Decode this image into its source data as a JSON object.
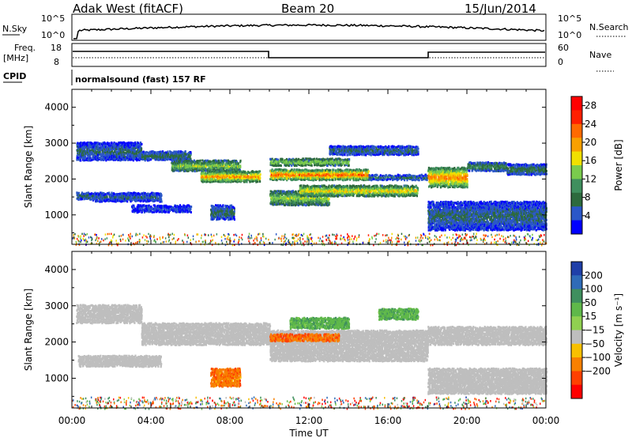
{
  "header": {
    "radar": "Adak West (fitACF)",
    "beam": "Beam 20",
    "date": "15/Jun/2014"
  },
  "top_panels": {
    "nsky_label": "N.Sky",
    "nsearch_label": "N.Search",
    "noise_ticks": [
      "10^5",
      "10^0"
    ],
    "freq_label_1": "Freq.",
    "freq_label_2": "[MHz]",
    "freq_ticks": [
      "18",
      "8"
    ],
    "nave_label": "Nave",
    "nave_ticks": [
      "60",
      "0"
    ],
    "cpid_label": "CPID",
    "cpid_text": "normalsound (fast) 157 RF"
  },
  "chart_data": [
    {
      "type": "heatmap",
      "title": "",
      "xlabel": "Time UT",
      "ylabel": "Slant Range [km]",
      "x_ticks": [
        "00:00",
        "04:00",
        "08:00",
        "12:00",
        "16:00",
        "20:00",
        "00:00"
      ],
      "xlim_hours": [
        0,
        24
      ],
      "y_ticks": [
        1000,
        2000,
        3000,
        4000
      ],
      "ylim": [
        180,
        4500
      ],
      "colorbar": {
        "label": "Power [dB]",
        "ticks": [
          4,
          8,
          12,
          16,
          20,
          24,
          28
        ],
        "range": [
          0,
          30
        ],
        "colors": [
          "#0000ff",
          "#2b57c8",
          "#2d6a3d",
          "#3f8f5e",
          "#7acb4d",
          "#f0e000",
          "#f8a000",
          "#ff6a00",
          "#ff2000",
          "#ff0000"
        ]
      },
      "bands": [
        {
          "t0": 0.2,
          "t1": 3.5,
          "r0": 2550,
          "r1": 3050,
          "power": 6
        },
        {
          "t0": 1.0,
          "t1": 4.5,
          "r0": 1400,
          "r1": 1650,
          "power": 6
        },
        {
          "t0": 0.2,
          "t1": 1.0,
          "r0": 1450,
          "r1": 1650,
          "power": 8
        },
        {
          "t0": 3.0,
          "t1": 6.0,
          "r0": 1100,
          "r1": 1300,
          "power": 5
        },
        {
          "t0": 3.5,
          "t1": 6.0,
          "r0": 2550,
          "r1": 2800,
          "power": 8
        },
        {
          "t0": 5.0,
          "t1": 8.5,
          "r0": 2250,
          "r1": 2550,
          "power": 14
        },
        {
          "t0": 6.5,
          "t1": 9.5,
          "r0": 1950,
          "r1": 2250,
          "power": 20
        },
        {
          "t0": 7.0,
          "t1": 8.2,
          "r0": 900,
          "r1": 1300,
          "power": 7
        },
        {
          "t0": 10.0,
          "t1": 15.0,
          "r0": 2000,
          "r1": 2300,
          "power": 22
        },
        {
          "t0": 10.0,
          "t1": 14.0,
          "r0": 2400,
          "r1": 2600,
          "power": 16
        },
        {
          "t0": 10.0,
          "t1": 13.0,
          "r0": 1300,
          "r1": 1700,
          "power": 14
        },
        {
          "t0": 11.5,
          "t1": 17.5,
          "r0": 1550,
          "r1": 1850,
          "power": 17
        },
        {
          "t0": 13.0,
          "t1": 17.5,
          "r0": 2700,
          "r1": 2950,
          "power": 7
        },
        {
          "t0": 15.0,
          "t1": 18.0,
          "r0": 2000,
          "r1": 2150,
          "power": 9
        },
        {
          "t0": 18.0,
          "t1": 20.0,
          "r0": 1800,
          "r1": 2350,
          "power": 20
        },
        {
          "t0": 20.0,
          "t1": 22.0,
          "r0": 2250,
          "r1": 2500,
          "power": 10
        },
        {
          "t0": 22.0,
          "t1": 24.0,
          "r0": 2150,
          "r1": 2450,
          "power": 8
        },
        {
          "t0": 18.0,
          "t1": 24.0,
          "r0": 600,
          "r1": 1400,
          "power": 6
        }
      ]
    },
    {
      "type": "heatmap",
      "title": "",
      "xlabel": "Time UT",
      "ylabel": "Slant Range [km]",
      "x_ticks": [
        "00:00",
        "04:00",
        "08:00",
        "12:00",
        "16:00",
        "20:00",
        "00:00"
      ],
      "xlim_hours": [
        0,
        24
      ],
      "y_ticks": [
        1000,
        2000,
        3000,
        4000
      ],
      "ylim": [
        180,
        4500
      ],
      "colorbar": {
        "label": "Velocity [m s⁻¹]",
        "ticks": [
          200,
          100,
          50,
          15,
          -15,
          -50,
          -100,
          -200
        ],
        "colors": [
          "#1f3fa8",
          "#2f6bb8",
          "#3f8f5e",
          "#5fb84a",
          "#90d050",
          "#bebebe",
          "#f8c000",
          "#f88000",
          "#ff4000",
          "#ff0000"
        ]
      },
      "bands": [
        {
          "t0": 0.2,
          "t1": 3.5,
          "r0": 2550,
          "r1": 3050,
          "vel": 0
        },
        {
          "t0": 0.3,
          "t1": 4.5,
          "r0": 1350,
          "r1": 1650,
          "vel": 0
        },
        {
          "t0": 3.5,
          "t1": 10.0,
          "r0": 1950,
          "r1": 2550,
          "vel": 0
        },
        {
          "t0": 7.0,
          "t1": 8.5,
          "r0": 800,
          "r1": 1300,
          "vel": -60
        },
        {
          "t0": 10.0,
          "t1": 18.0,
          "r0": 1500,
          "r1": 2350,
          "vel": 0
        },
        {
          "t0": 10.0,
          "t1": 13.5,
          "r0": 2050,
          "r1": 2250,
          "vel": -70
        },
        {
          "t0": 11.0,
          "t1": 14.0,
          "r0": 2400,
          "r1": 2700,
          "vel": 60
        },
        {
          "t0": 15.5,
          "t1": 17.5,
          "r0": 2650,
          "r1": 2950,
          "vel": 60
        },
        {
          "t0": 18.0,
          "t1": 24.0,
          "r0": 1950,
          "r1": 2450,
          "vel": 0
        },
        {
          "t0": 18.0,
          "t1": 24.0,
          "r0": 600,
          "r1": 1300,
          "vel": 0
        }
      ]
    }
  ]
}
